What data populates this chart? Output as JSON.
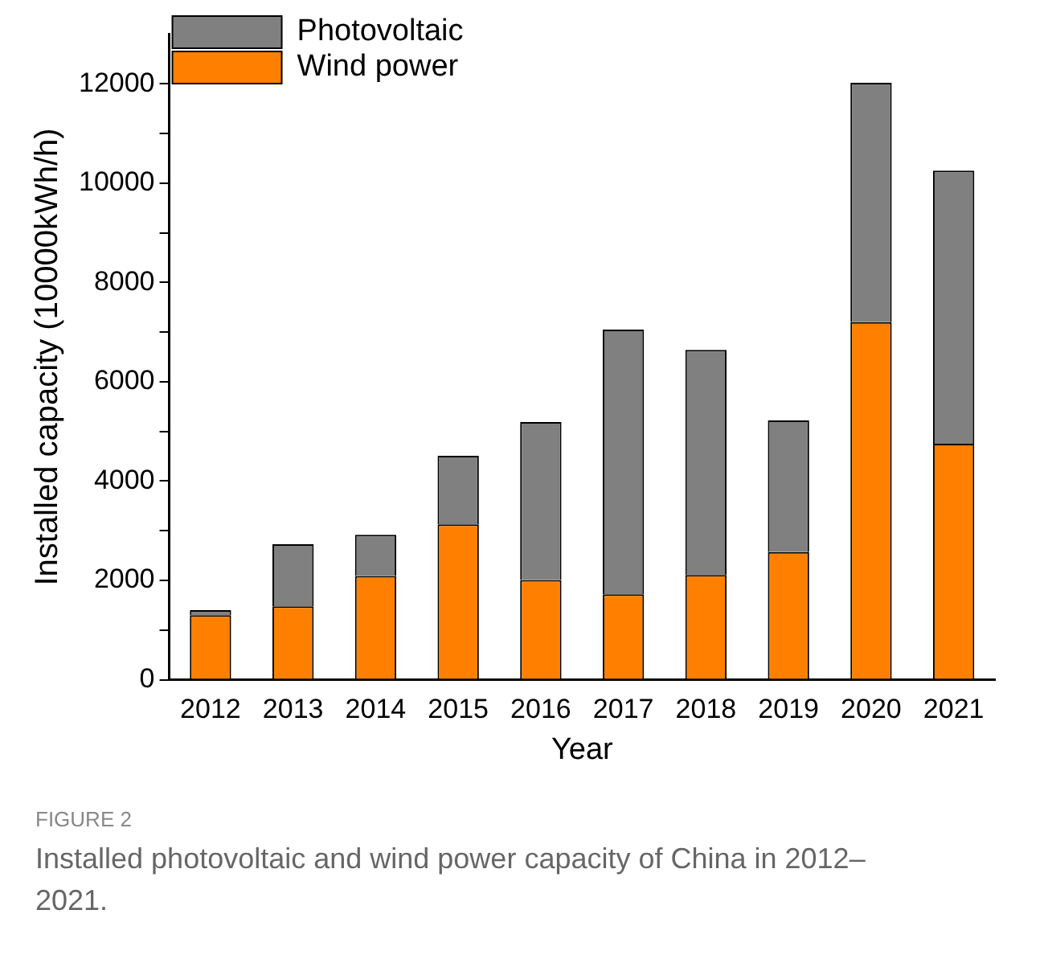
{
  "chart_data": {
    "type": "bar",
    "stacked": true,
    "xlabel": "Year",
    "ylabel": "Installed capacity (10000kWh/h)",
    "categories": [
      "2012",
      "2013",
      "2014",
      "2015",
      "2016",
      "2017",
      "2018",
      "2019",
      "2020",
      "2021"
    ],
    "series": [
      {
        "name": "Wind power",
        "color": "#ff8000",
        "values": [
          1300,
          1480,
          2090,
          3130,
          2010,
          1720,
          2110,
          2570,
          7200,
          4750
        ]
      },
      {
        "name": "Photovoltaic",
        "color": "#808080",
        "values": [
          100,
          1250,
          830,
          1380,
          3180,
          5330,
          4530,
          2650,
          4820,
          5500
        ]
      }
    ],
    "ylim": [
      0,
      13000
    ],
    "yticks": [
      0,
      {
        "value": 1000,
        "label": null
      },
      2000,
      {
        "value": 3000,
        "label": null
      },
      4000,
      {
        "value": 5000,
        "label": null
      },
      6000,
      {
        "value": 7000,
        "label": null
      },
      8000,
      {
        "value": 9000,
        "label": null
      },
      10000,
      {
        "value": 11000,
        "label": null
      },
      12000
    ],
    "grid": false,
    "legend": "top left",
    "annotations": [
      "FIGURE 2",
      "Installed photovoltaic and wind power capacity of China in 2012–2021."
    ]
  }
}
